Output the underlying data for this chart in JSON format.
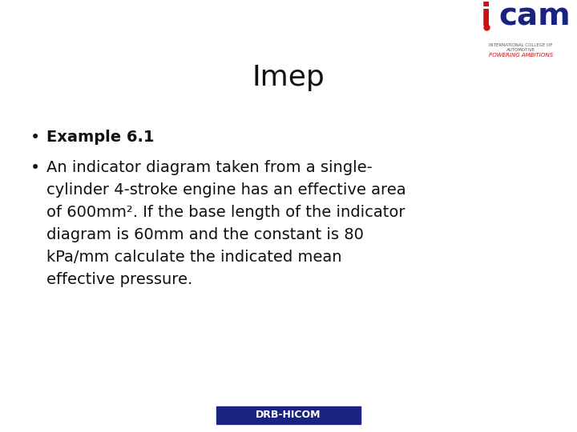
{
  "title": "Imep",
  "title_fontsize": 26,
  "background_color": "#ffffff",
  "bullet1_bold": "Example 6.1",
  "bullet2_text": "An indicator diagram taken from a single-\ncylinder 4-stroke engine has an effective area\nof 600mm². If the base length of the indicator\ndiagram is 60mm and the constant is 80\nkPa/mm calculate the indicated mean\neffective pressure.",
  "bullet_fontsize": 14,
  "footer_text": "DRB-HICOM",
  "footer_bg": "#1a237e",
  "footer_color": "#ffffff",
  "footer_fontsize": 9,
  "text_color": "#111111"
}
